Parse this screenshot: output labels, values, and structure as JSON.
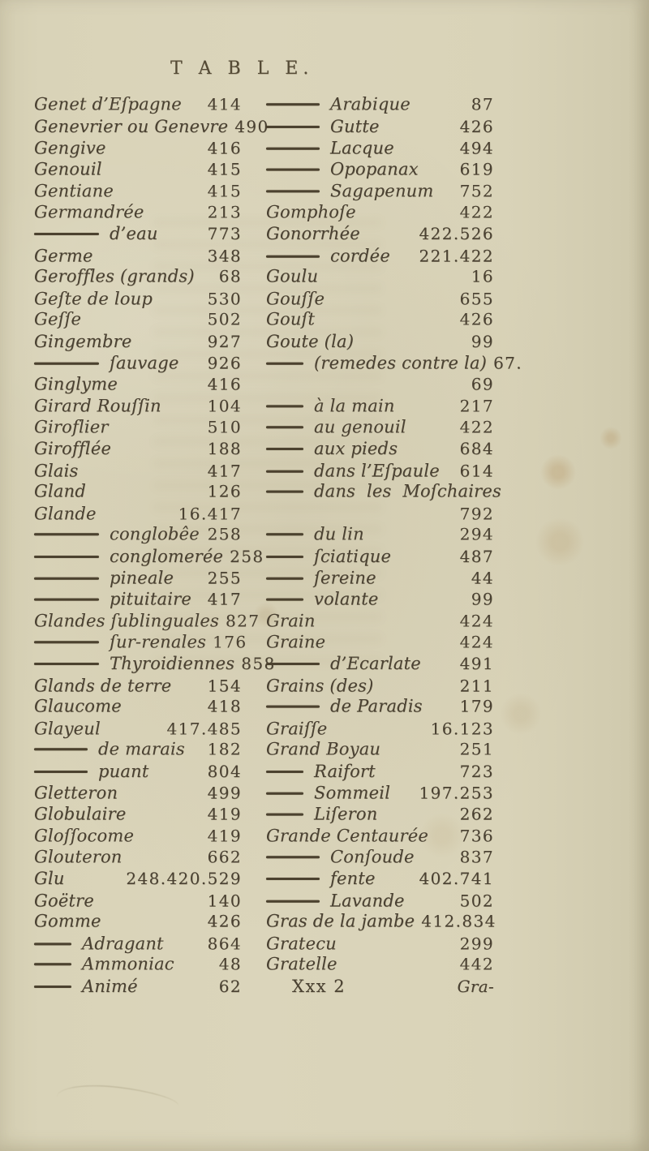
{
  "page": {
    "title": "T A B L E.",
    "paper_color": "#d8d2b7",
    "ink_color": "#4a4132",
    "signature_mark": "Xxx 2",
    "catchword": "Gra-"
  },
  "left_column": {
    "entries": [
      {
        "dash": "",
        "label": "Genet d’Eſpagne",
        "page": "414"
      },
      {
        "dash": "",
        "label": "Genevrier ou Genevre",
        "page": "490"
      },
      {
        "dash": "",
        "label": "Gengive",
        "page": "416"
      },
      {
        "dash": "",
        "label": "Genouil",
        "page": "415"
      },
      {
        "dash": "",
        "label": "Gentiane",
        "page": "415"
      },
      {
        "dash": "",
        "label": "Germandrée",
        "page": "213"
      },
      {
        "dash": "l",
        "label": "d’eau",
        "page": "773"
      },
      {
        "dash": "",
        "label": "Germe",
        "page": "348"
      },
      {
        "dash": "",
        "label": "Geroffles (grands)",
        "page": "68"
      },
      {
        "dash": "",
        "label": "Geſte de loup",
        "page": "530"
      },
      {
        "dash": "",
        "label": "Geſſe",
        "page": "502"
      },
      {
        "dash": "",
        "label": "Gingembre",
        "page": "927"
      },
      {
        "dash": "l",
        "label": "ſauvage",
        "page": "926"
      },
      {
        "dash": "",
        "label": "Ginglyme",
        "page": "416"
      },
      {
        "dash": "",
        "label": "Girard Rouſſin",
        "page": "104"
      },
      {
        "dash": "",
        "label": "Giroflier",
        "page": "510"
      },
      {
        "dash": "",
        "label": "Girofflée",
        "page": "188"
      },
      {
        "dash": "",
        "label": "Glais",
        "page": "417"
      },
      {
        "dash": "",
        "label": "Gland",
        "page": "126"
      },
      {
        "dash": "",
        "label": "Glande",
        "page": "16.417"
      },
      {
        "dash": "l",
        "label": "conglobêe",
        "page": "258"
      },
      {
        "dash": "l",
        "label": "conglomerée",
        "page": "258"
      },
      {
        "dash": "l",
        "label": "pineale",
        "page": "255"
      },
      {
        "dash": "l",
        "label": "pituitaire",
        "page": "417"
      },
      {
        "dash": "",
        "label": "Glandes ſublinguales",
        "page": "827"
      },
      {
        "dash": "l",
        "label": "ſur-renales",
        "page": "176"
      },
      {
        "dash": "l",
        "label": "Thyroidiennes",
        "page": "858"
      },
      {
        "dash": "",
        "label": "Glands de terre",
        "page": "154"
      },
      {
        "dash": "",
        "label": "Glaucome",
        "page": "418"
      },
      {
        "dash": "",
        "label": "Glayeul",
        "page": "417.485"
      },
      {
        "dash": "m",
        "label": "de marais",
        "page": "182"
      },
      {
        "dash": "m",
        "label": "puant",
        "page": "804"
      },
      {
        "dash": "",
        "label": "Gletteron",
        "page": "499"
      },
      {
        "dash": "",
        "label": "Globulaire",
        "page": "419"
      },
      {
        "dash": "",
        "label": "Gloſſocome",
        "page": "419"
      },
      {
        "dash": "",
        "label": "Glouteron",
        "page": "662"
      },
      {
        "dash": "",
        "label": "Glu",
        "page": "248.420.529"
      },
      {
        "dash": "",
        "label": "Goëtre",
        "page": "140"
      },
      {
        "dash": "",
        "label": "Gomme",
        "page": "426"
      },
      {
        "dash": "s",
        "label": "Adragant",
        "page": "864"
      },
      {
        "dash": "s",
        "label": "Ammoniac",
        "page": "48"
      },
      {
        "dash": "s",
        "label": "Animé",
        "page": "62"
      }
    ]
  },
  "right_column": {
    "entries": [
      {
        "dash": "m",
        "label": "Arabique",
        "page": "87"
      },
      {
        "dash": "m",
        "label": "Gutte",
        "page": "426"
      },
      {
        "dash": "m",
        "label": "Lacque",
        "page": "494"
      },
      {
        "dash": "m",
        "label": "Opopanax",
        "page": "619"
      },
      {
        "dash": "m",
        "label": "Sagapenum",
        "page": "752"
      },
      {
        "dash": "",
        "label": "Gomphoſe",
        "page": "422"
      },
      {
        "dash": "",
        "label": "Gonorrhée",
        "page": "422.526"
      },
      {
        "dash": "m",
        "label": "cordée",
        "page": "221.422"
      },
      {
        "dash": "",
        "label": "Goulu",
        "page": "16"
      },
      {
        "dash": "",
        "label": "Gouſſe",
        "page": "655"
      },
      {
        "dash": "",
        "label": "Gouſt",
        "page": "426"
      },
      {
        "dash": "",
        "label": "Goute (la)",
        "page": "99"
      },
      {
        "dash": "s",
        "label": "(remedes contre la)",
        "page": "67."
      },
      {
        "dash": "",
        "label": "",
        "page": "69"
      },
      {
        "dash": "s",
        "label": "à la main",
        "page": "217"
      },
      {
        "dash": "s",
        "label": "au genouil",
        "page": "422"
      },
      {
        "dash": "s",
        "label": "aux pieds",
        "page": "684"
      },
      {
        "dash": "s",
        "label": "dans l’Eſpaule",
        "page": "614"
      },
      {
        "dash": "s",
        "label": "dans les Moſchaires",
        "page": "",
        "spread": true
      },
      {
        "dash": "",
        "label": "",
        "page": "792"
      },
      {
        "dash": "s",
        "label": "du lin",
        "page": "294"
      },
      {
        "dash": "s",
        "label": "ſciatique",
        "page": "487"
      },
      {
        "dash": "s",
        "label": "ſereine",
        "page": "44"
      },
      {
        "dash": "s",
        "label": "volante",
        "page": "99"
      },
      {
        "dash": "",
        "label": "Grain",
        "page": "424"
      },
      {
        "dash": "",
        "label": "Graine",
        "page": "424"
      },
      {
        "dash": "m",
        "label": "d’Ecarlate",
        "page": "491"
      },
      {
        "dash": "",
        "label": "Grains (des)",
        "page": "211"
      },
      {
        "dash": "m",
        "label": "de Paradis",
        "page": "179"
      },
      {
        "dash": "",
        "label": "Graiſſe",
        "page": "16.123"
      },
      {
        "dash": "",
        "label": "Grand Boyau",
        "page": "251"
      },
      {
        "dash": "s",
        "label": "Raifort",
        "page": "723"
      },
      {
        "dash": "s",
        "label": "Sommeil",
        "page": "197.253"
      },
      {
        "dash": "s",
        "label": "Liſeron",
        "page": "262"
      },
      {
        "dash": "",
        "label": "Grande Centaurée",
        "page": "736"
      },
      {
        "dash": "m",
        "label": "Conſoude",
        "page": "837"
      },
      {
        "dash": "m",
        "label": "fente",
        "page": "402.741"
      },
      {
        "dash": "m",
        "label": "Lavande",
        "page": "502"
      },
      {
        "dash": "",
        "label": "Gras de la jambe",
        "page": "412.834"
      },
      {
        "dash": "",
        "label": "Gratecu",
        "page": "299"
      },
      {
        "dash": "",
        "label": "Gratelle",
        "page": "442"
      },
      {
        "dash": "",
        "label": "Xxx 2",
        "page": "Gra-",
        "type": "sig"
      }
    ]
  }
}
